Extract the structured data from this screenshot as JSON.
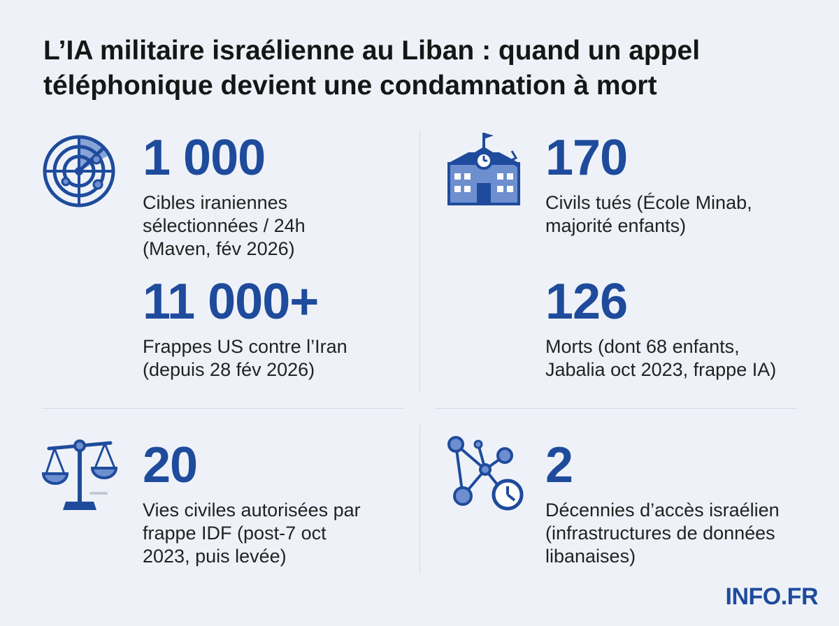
{
  "title": {
    "line1": "L’IA militaire israélienne au Liban : quand un appel",
    "line2": "téléphonique devient une condamnation à mort"
  },
  "colors": {
    "accent": "#1f4b9c",
    "icon_light": "#6d8fd0",
    "background": "#eef2f8"
  },
  "stats": [
    {
      "icon": "radar-icon",
      "number": "1 000",
      "lines": [
        "Cibles iraniennes",
        "sélectionnées / 24h",
        "(Maven, fév 2026)"
      ]
    },
    {
      "icon": "",
      "number": "11 000+",
      "lines": [
        "Frappes US contre l’Iran",
        "(depuis 28 fév 2026)"
      ]
    },
    {
      "icon": "school-icon",
      "number": "170",
      "lines": [
        "Civils tués (École Minab,",
        "majorité enfants)"
      ]
    },
    {
      "icon": "",
      "number": "126",
      "lines": [
        "Morts (dont 68 enfants,",
        "Jabalia oct 2023, frappe IA)"
      ]
    },
    {
      "icon": "scales-icon",
      "number": "20",
      "lines": [
        "Vies civiles autorisées par",
        "frappe IDF (post-7 oct",
        "2023, puis levée)"
      ]
    },
    {
      "icon": "network-clock-icon",
      "number": "2",
      "lines": [
        "Décennies d’accès israélien",
        "(infrastructures de données",
        "libanaises)"
      ]
    }
  ],
  "brand": "INFO.FR"
}
